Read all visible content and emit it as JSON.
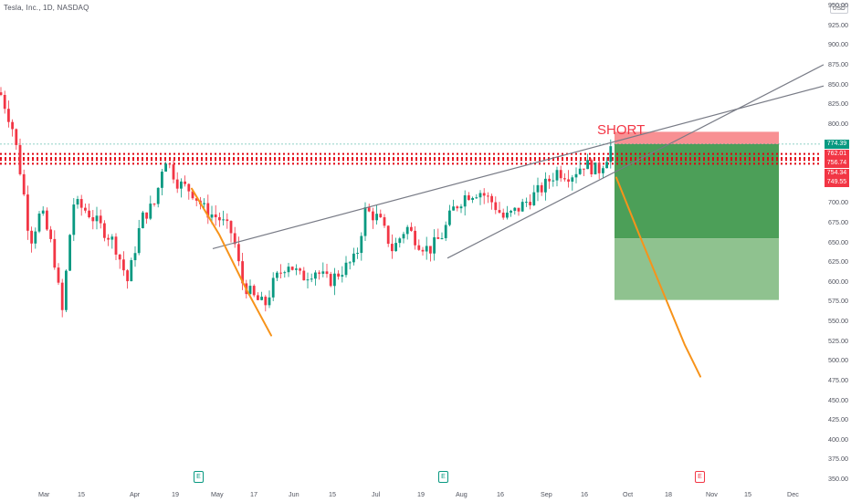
{
  "header": {
    "symbol_title": "Tesla, Inc., 1D, NASDAQ",
    "currency_badge": "USD"
  },
  "annotations": {
    "short_label": "SHORT"
  },
  "colors": {
    "candle_up": "#089981",
    "candle_down": "#f23645",
    "trendline": "#787b86",
    "projection": "#f7931a",
    "stop_zone": "#f77c80",
    "target_zone_1": "#4c9f58",
    "target_zone_2": "#8fc28f",
    "resistance_dots": "#e2000f"
  },
  "price_tags": [
    {
      "label": "774.39",
      "color": "#089981"
    },
    {
      "label": "762.01",
      "color": "#f23645"
    },
    {
      "label": "756.74",
      "color": "#f23645"
    },
    {
      "label": "754.34",
      "color": "#f23645"
    },
    {
      "label": "749.55",
      "color": "#f23645"
    }
  ],
  "event_icons": [
    {
      "label": "E",
      "color": "#089981"
    },
    {
      "label": "E",
      "color": "#089981"
    },
    {
      "label": "E",
      "color": "#f23645"
    }
  ],
  "chart_data": {
    "type": "candlestick",
    "title": "",
    "xlabel": "",
    "ylabel": "",
    "ylim": [
      350,
      950
    ],
    "y_ticks": [
      "950.00",
      "925.00",
      "900.00",
      "875.00",
      "850.00",
      "825.00",
      "800.00",
      "775.00",
      "750.00",
      "725.00",
      "700.00",
      "675.00",
      "650.00",
      "625.00",
      "600.00",
      "575.00",
      "550.00",
      "525.00",
      "500.00",
      "475.00",
      "450.00",
      "425.00",
      "400.00",
      "375.00",
      "350.00"
    ],
    "x_ticks": [
      "Mar",
      "15",
      "Apr",
      "19",
      "May",
      "17",
      "Jun",
      "15",
      "Jul",
      "19",
      "Aug",
      "16",
      "Sep",
      "16",
      "Oct",
      "18",
      "Nov",
      "15",
      "Dec"
    ],
    "price_path": [
      {
        "x": 0,
        "y": 840
      },
      {
        "x": 8,
        "y": 815
      },
      {
        "x": 15,
        "y": 790
      },
      {
        "x": 25,
        "y": 720
      },
      {
        "x": 33,
        "y": 650
      },
      {
        "x": 45,
        "y": 690
      },
      {
        "x": 58,
        "y": 640
      },
      {
        "x": 68,
        "y": 560
      },
      {
        "x": 80,
        "y": 700
      },
      {
        "x": 95,
        "y": 690
      },
      {
        "x": 110,
        "y": 670
      },
      {
        "x": 125,
        "y": 650
      },
      {
        "x": 140,
        "y": 600
      },
      {
        "x": 155,
        "y": 680
      },
      {
        "x": 170,
        "y": 700
      },
      {
        "x": 180,
        "y": 760
      },
      {
        "x": 195,
        "y": 725
      },
      {
        "x": 210,
        "y": 715
      },
      {
        "x": 225,
        "y": 690
      },
      {
        "x": 240,
        "y": 680
      },
      {
        "x": 255,
        "y": 660
      },
      {
        "x": 265,
        "y": 600
      },
      {
        "x": 278,
        "y": 580
      },
      {
        "x": 290,
        "y": 570
      },
      {
        "x": 300,
        "y": 600
      },
      {
        "x": 315,
        "y": 625
      },
      {
        "x": 330,
        "y": 605
      },
      {
        "x": 345,
        "y": 615
      },
      {
        "x": 360,
        "y": 600
      },
      {
        "x": 375,
        "y": 615
      },
      {
        "x": 390,
        "y": 630
      },
      {
        "x": 400,
        "y": 690
      },
      {
        "x": 415,
        "y": 680
      },
      {
        "x": 430,
        "y": 640
      },
      {
        "x": 445,
        "y": 670
      },
      {
        "x": 458,
        "y": 650
      },
      {
        "x": 470,
        "y": 640
      },
      {
        "x": 485,
        "y": 660
      },
      {
        "x": 495,
        "y": 690
      },
      {
        "x": 510,
        "y": 710
      },
      {
        "x": 525,
        "y": 715
      },
      {
        "x": 540,
        "y": 700
      },
      {
        "x": 552,
        "y": 680
      },
      {
        "x": 565,
        "y": 690
      },
      {
        "x": 580,
        "y": 705
      },
      {
        "x": 595,
        "y": 720
      },
      {
        "x": 610,
        "y": 740
      },
      {
        "x": 625,
        "y": 735
      },
      {
        "x": 640,
        "y": 750
      },
      {
        "x": 655,
        "y": 740
      },
      {
        "x": 665,
        "y": 760
      },
      {
        "x": 670,
        "y": 774
      }
    ],
    "resistance_levels": [
      762.01,
      756.74,
      754.34,
      749.55
    ],
    "trendlines": [
      {
        "from": {
          "x": 233,
          "y": 642
        },
        "to": {
          "x": 902,
          "y": 848
        }
      },
      {
        "from": {
          "x": 490,
          "y": 630
        },
        "to": {
          "x": 902,
          "y": 875
        }
      }
    ],
    "projection_lines": [
      {
        "points": [
          {
            "x": 210,
            "y": 718
          },
          {
            "x": 240,
            "y": 660
          },
          {
            "x": 270,
            "y": 590
          },
          {
            "x": 297,
            "y": 532
          }
        ]
      },
      {
        "points": [
          {
            "x": 675,
            "y": 732
          },
          {
            "x": 700,
            "y": 660
          },
          {
            "x": 725,
            "y": 590
          },
          {
            "x": 750,
            "y": 520
          },
          {
            "x": 767,
            "y": 480
          }
        ]
      }
    ],
    "position": {
      "type": "short",
      "entry": 774.39,
      "stop": 790,
      "target_1": 655,
      "target_2": 577,
      "x_start": 673,
      "x_end": 853
    },
    "legend": "none",
    "grid": false
  }
}
